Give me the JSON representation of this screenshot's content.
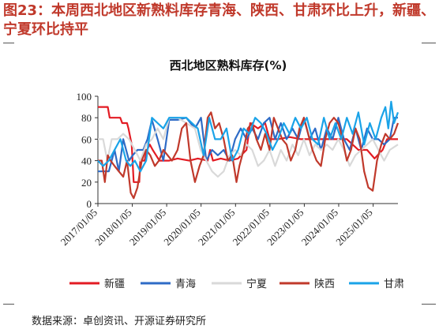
{
  "figure": {
    "title": "图23：本周西北地区新熟料库存青海、陕西、甘肃环比上升，新疆、宁夏环比持平",
    "source": "数据来源：卓创资讯、开源证券研究所"
  },
  "chart_data": {
    "type": "line",
    "title": "西北地区熟料库存(%)",
    "xlabel": "",
    "ylabel": "",
    "ylim": [
      0,
      100
    ],
    "yticks": [
      0,
      20,
      40,
      60,
      80,
      100
    ],
    "xlim": [
      "2017-01-05",
      "2025-09-25"
    ],
    "xticks": [
      "2017/01/05",
      "2018/01/05",
      "2019/01/05",
      "2020/01/05",
      "2021/01/05",
      "2022/01/05",
      "2023/01/05",
      "2024/01/05",
      "2025/01/05"
    ],
    "grid": false,
    "legend_position": "bottom",
    "series": [
      {
        "name": "新疆",
        "color": "#e31b23",
        "points": [
          [
            "2017-01-05",
            90
          ],
          [
            "2017-04-20",
            90
          ],
          [
            "2017-05-10",
            80
          ],
          [
            "2017-08-30",
            80
          ],
          [
            "2017-09-20",
            75
          ],
          [
            "2017-11-10",
            75
          ],
          [
            "2017-11-25",
            70
          ],
          [
            "2017-12-30",
            55
          ],
          [
            "2018-01-20",
            20
          ],
          [
            "2018-03-20",
            20
          ],
          [
            "2018-03-30",
            40
          ],
          [
            "2018-05-15",
            40
          ],
          [
            "2018-06-10",
            50
          ],
          [
            "2018-07-10",
            55
          ],
          [
            "2018-08-10",
            50
          ],
          [
            "2018-09-15",
            45
          ],
          [
            "2018-10-20",
            40
          ],
          [
            "2018-12-15",
            40
          ],
          [
            "2019-02-01",
            40
          ],
          [
            "2019-05-01",
            42
          ],
          [
            "2019-09-01",
            40
          ],
          [
            "2019-12-01",
            42
          ],
          [
            "2020-03-15",
            40
          ],
          [
            "2020-04-10",
            50
          ],
          [
            "2020-05-10",
            40
          ],
          [
            "2020-08-01",
            42
          ],
          [
            "2020-11-01",
            40
          ],
          [
            "2021-02-01",
            42
          ],
          [
            "2021-05-01",
            50
          ],
          [
            "2021-06-10",
            75
          ],
          [
            "2021-09-01",
            70
          ],
          [
            "2021-11-15",
            75
          ],
          [
            "2022-01-01",
            60
          ],
          [
            "2022-04-01",
            60
          ],
          [
            "2022-08-01",
            62
          ],
          [
            "2022-12-01",
            60
          ],
          [
            "2023-03-01",
            60
          ],
          [
            "2023-08-01",
            60
          ],
          [
            "2023-12-01",
            60
          ],
          [
            "2024-04-01",
            60
          ],
          [
            "2024-08-01",
            50
          ],
          [
            "2024-11-01",
            50
          ],
          [
            "2025-01-20",
            42
          ],
          [
            "2025-04-15",
            50
          ],
          [
            "2025-06-01",
            60
          ],
          [
            "2025-08-01",
            60
          ],
          [
            "2025-09-25",
            60
          ]
        ]
      },
      {
        "name": "青海",
        "color": "#2e6bc6",
        "points": [
          [
            "2017-01-05",
            30
          ],
          [
            "2017-05-01",
            30
          ],
          [
            "2017-07-01",
            50
          ],
          [
            "2017-08-15",
            30
          ],
          [
            "2017-10-01",
            60
          ],
          [
            "2017-12-01",
            40
          ],
          [
            "2018-01-10",
            45
          ],
          [
            "2018-03-01",
            50
          ],
          [
            "2018-05-01",
            50
          ],
          [
            "2018-06-15",
            60
          ],
          [
            "2018-08-01",
            78
          ],
          [
            "2018-10-01",
            60
          ],
          [
            "2018-12-01",
            40
          ],
          [
            "2019-02-01",
            78
          ],
          [
            "2019-05-01",
            78
          ],
          [
            "2019-08-01",
            80
          ],
          [
            "2019-11-01",
            70
          ],
          [
            "2020-01-05",
            80
          ],
          [
            "2020-03-01",
            40
          ],
          [
            "2020-05-01",
            50
          ],
          [
            "2020-07-01",
            45
          ],
          [
            "2020-09-01",
            50
          ],
          [
            "2020-11-01",
            40
          ],
          [
            "2021-01-01",
            60
          ],
          [
            "2021-03-01",
            70
          ],
          [
            "2021-05-01",
            60
          ],
          [
            "2021-07-01",
            70
          ],
          [
            "2021-09-01",
            60
          ],
          [
            "2021-11-01",
            75
          ],
          [
            "2022-01-01",
            80
          ],
          [
            "2022-03-01",
            60
          ],
          [
            "2022-05-01",
            75
          ],
          [
            "2022-07-01",
            60
          ],
          [
            "2022-09-01",
            70
          ],
          [
            "2022-11-01",
            60
          ],
          [
            "2023-01-01",
            80
          ],
          [
            "2023-03-01",
            60
          ],
          [
            "2023-05-01",
            70
          ],
          [
            "2023-07-01",
            50
          ],
          [
            "2023-09-01",
            70
          ],
          [
            "2023-11-01",
            60
          ],
          [
            "2024-01-01",
            80
          ],
          [
            "2024-03-01",
            60
          ],
          [
            "2024-05-01",
            50
          ],
          [
            "2024-07-01",
            70
          ],
          [
            "2024-09-01",
            50
          ],
          [
            "2024-11-01",
            70
          ],
          [
            "2025-01-01",
            60
          ],
          [
            "2025-03-01",
            60
          ],
          [
            "2025-05-01",
            55
          ],
          [
            "2025-07-01",
            60
          ],
          [
            "2025-08-15",
            80
          ],
          [
            "2025-09-25",
            80
          ]
        ]
      },
      {
        "name": "宁夏",
        "color": "#d9d9d9",
        "points": [
          [
            "2017-01-05",
            60
          ],
          [
            "2017-03-01",
            60
          ],
          [
            "2017-04-15",
            40
          ],
          [
            "2017-06-01",
            60
          ],
          [
            "2017-08-01",
            60
          ],
          [
            "2017-10-01",
            65
          ],
          [
            "2017-12-01",
            60
          ],
          [
            "2018-02-01",
            50
          ],
          [
            "2018-04-01",
            40
          ],
          [
            "2018-06-01",
            55
          ],
          [
            "2018-08-01",
            60
          ],
          [
            "2018-10-01",
            70
          ],
          [
            "2018-12-01",
            60
          ],
          [
            "2019-02-01",
            80
          ],
          [
            "2019-05-01",
            80
          ],
          [
            "2019-08-01",
            75
          ],
          [
            "2019-11-01",
            70
          ],
          [
            "2020-01-01",
            50
          ],
          [
            "2020-03-01",
            40
          ],
          [
            "2020-05-01",
            30
          ],
          [
            "2020-07-01",
            25
          ],
          [
            "2020-09-01",
            30
          ],
          [
            "2020-11-01",
            45
          ],
          [
            "2021-01-01",
            50
          ],
          [
            "2021-03-01",
            45
          ],
          [
            "2021-05-01",
            55
          ],
          [
            "2021-07-01",
            50
          ],
          [
            "2021-09-01",
            35
          ],
          [
            "2021-11-01",
            40
          ],
          [
            "2022-01-01",
            50
          ],
          [
            "2022-03-01",
            35
          ],
          [
            "2022-05-01",
            50
          ],
          [
            "2022-07-01",
            40
          ],
          [
            "2022-09-01",
            55
          ],
          [
            "2022-11-01",
            45
          ],
          [
            "2023-01-01",
            60
          ],
          [
            "2023-03-01",
            45
          ],
          [
            "2023-05-01",
            55
          ],
          [
            "2023-07-01",
            50
          ],
          [
            "2023-09-01",
            55
          ],
          [
            "2023-11-01",
            50
          ],
          [
            "2024-01-01",
            60
          ],
          [
            "2024-03-01",
            50
          ],
          [
            "2024-05-01",
            35
          ],
          [
            "2024-07-01",
            45
          ],
          [
            "2024-09-01",
            50
          ],
          [
            "2024-11-01",
            55
          ],
          [
            "2025-01-01",
            60
          ],
          [
            "2025-03-01",
            50
          ],
          [
            "2025-05-01",
            40
          ],
          [
            "2025-07-01",
            50
          ],
          [
            "2025-09-25",
            55
          ]
        ]
      },
      {
        "name": "陕西",
        "color": "#c0392b",
        "points": [
          [
            "2017-01-05",
            40
          ],
          [
            "2017-02-15",
            40
          ],
          [
            "2017-03-20",
            20
          ],
          [
            "2017-04-20",
            45
          ],
          [
            "2017-05-20",
            40
          ],
          [
            "2017-07-01",
            35
          ],
          [
            "2017-08-15",
            30
          ],
          [
            "2017-10-01",
            25
          ],
          [
            "2017-11-10",
            40
          ],
          [
            "2017-12-20",
            10
          ],
          [
            "2018-01-20",
            5
          ],
          [
            "2018-03-01",
            15
          ],
          [
            "2018-04-15",
            40
          ],
          [
            "2018-06-01",
            50
          ],
          [
            "2018-07-15",
            45
          ],
          [
            "2018-09-01",
            35
          ],
          [
            "2018-10-15",
            40
          ],
          [
            "2018-12-01",
            50
          ],
          [
            "2019-01-15",
            45
          ],
          [
            "2019-03-01",
            40
          ],
          [
            "2019-05-01",
            50
          ],
          [
            "2019-06-15",
            70
          ],
          [
            "2019-08-01",
            75
          ],
          [
            "2019-09-15",
            40
          ],
          [
            "2019-11-01",
            20
          ],
          [
            "2019-12-20",
            35
          ],
          [
            "2020-02-01",
            45
          ],
          [
            "2020-03-15",
            80
          ],
          [
            "2020-04-20",
            85
          ],
          [
            "2020-06-01",
            70
          ],
          [
            "2020-07-15",
            75
          ],
          [
            "2020-09-01",
            60
          ],
          [
            "2020-10-15",
            40
          ],
          [
            "2020-12-01",
            45
          ],
          [
            "2021-01-15",
            20
          ],
          [
            "2021-02-15",
            35
          ],
          [
            "2021-04-01",
            50
          ],
          [
            "2021-05-15",
            70
          ],
          [
            "2021-07-01",
            75
          ],
          [
            "2021-08-15",
            60
          ],
          [
            "2021-10-01",
            50
          ],
          [
            "2021-11-15",
            65
          ],
          [
            "2022-01-01",
            50
          ],
          [
            "2022-02-15",
            80
          ],
          [
            "2022-04-01",
            70
          ],
          [
            "2022-05-15",
            60
          ],
          [
            "2022-07-01",
            55
          ],
          [
            "2022-08-15",
            40
          ],
          [
            "2022-10-01",
            50
          ],
          [
            "2022-11-15",
            70
          ],
          [
            "2023-01-01",
            80
          ],
          [
            "2023-02-15",
            65
          ],
          [
            "2023-04-01",
            50
          ],
          [
            "2023-05-15",
            40
          ],
          [
            "2023-07-01",
            35
          ],
          [
            "2023-08-15",
            60
          ],
          [
            "2023-10-01",
            75
          ],
          [
            "2023-11-15",
            80
          ],
          [
            "2024-01-01",
            75
          ],
          [
            "2024-02-15",
            60
          ],
          [
            "2024-04-01",
            40
          ],
          [
            "2024-05-15",
            50
          ],
          [
            "2024-07-01",
            70
          ],
          [
            "2024-08-15",
            60
          ],
          [
            "2024-10-01",
            30
          ],
          [
            "2024-11-15",
            15
          ],
          [
            "2025-01-01",
            12
          ],
          [
            "2025-02-15",
            40
          ],
          [
            "2025-04-01",
            55
          ],
          [
            "2025-05-15",
            65
          ],
          [
            "2025-07-01",
            60
          ],
          [
            "2025-08-15",
            65
          ],
          [
            "2025-09-25",
            75
          ]
        ]
      },
      {
        "name": "甘肃",
        "color": "#1aa3e8",
        "points": [
          [
            "2017-01-05",
            40
          ],
          [
            "2017-03-01",
            35
          ],
          [
            "2017-05-01",
            40
          ],
          [
            "2017-07-01",
            50
          ],
          [
            "2017-09-01",
            60
          ],
          [
            "2017-11-01",
            40
          ],
          [
            "2017-12-15",
            35
          ],
          [
            "2018-02-01",
            40
          ],
          [
            "2018-04-01",
            30
          ],
          [
            "2018-06-01",
            40
          ],
          [
            "2018-08-01",
            80
          ],
          [
            "2018-10-01",
            75
          ],
          [
            "2018-12-01",
            70
          ],
          [
            "2019-02-01",
            80
          ],
          [
            "2019-05-01",
            80
          ],
          [
            "2019-08-01",
            80
          ],
          [
            "2019-10-01",
            75
          ],
          [
            "2019-12-01",
            70
          ],
          [
            "2020-02-01",
            45
          ],
          [
            "2020-04-01",
            80
          ],
          [
            "2020-06-01",
            60
          ],
          [
            "2020-08-01",
            60
          ],
          [
            "2020-10-01",
            70
          ],
          [
            "2020-12-01",
            40
          ],
          [
            "2021-02-01",
            50
          ],
          [
            "2021-04-01",
            70
          ],
          [
            "2021-06-01",
            65
          ],
          [
            "2021-08-01",
            80
          ],
          [
            "2021-10-01",
            75
          ],
          [
            "2021-12-01",
            65
          ],
          [
            "2022-02-01",
            50
          ],
          [
            "2022-04-01",
            60
          ],
          [
            "2022-06-01",
            75
          ],
          [
            "2022-08-01",
            65
          ],
          [
            "2022-10-01",
            80
          ],
          [
            "2022-12-01",
            70
          ],
          [
            "2023-02-01",
            80
          ],
          [
            "2023-04-01",
            60
          ],
          [
            "2023-06-01",
            55
          ],
          [
            "2023-08-01",
            80
          ],
          [
            "2023-10-01",
            60
          ],
          [
            "2023-12-01",
            75
          ],
          [
            "2024-02-01",
            60
          ],
          [
            "2024-04-01",
            80
          ],
          [
            "2024-06-01",
            65
          ],
          [
            "2024-08-01",
            85
          ],
          [
            "2024-10-01",
            55
          ],
          [
            "2024-12-01",
            75
          ],
          [
            "2025-02-01",
            60
          ],
          [
            "2025-04-01",
            80
          ],
          [
            "2025-05-15",
            90
          ],
          [
            "2025-06-15",
            70
          ],
          [
            "2025-07-15",
            95
          ],
          [
            "2025-08-15",
            75
          ],
          [
            "2025-09-25",
            85
          ]
        ]
      }
    ]
  }
}
